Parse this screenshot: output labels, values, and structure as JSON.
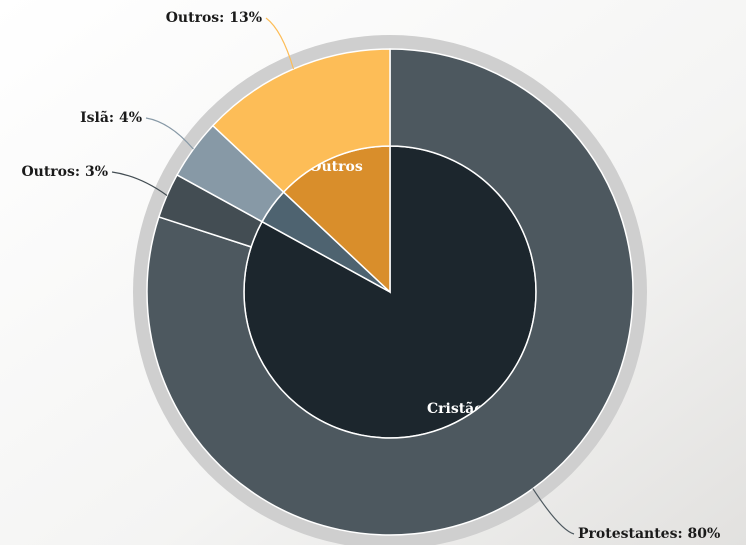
{
  "chart_data": {
    "type": "sunburst",
    "rings": [
      {
        "labels": [
          "Cristãos",
          null,
          "Outros"
        ],
        "values": [
          83,
          4,
          13
        ],
        "colors": [
          "#1c262d",
          "#4e6370",
          "#d98e2b"
        ]
      },
      {
        "labels": [
          "Protestantes: 80%",
          "Outros: 3%",
          "Islã: 4%",
          "Outros: 13%"
        ],
        "values": [
          80,
          3,
          4,
          13
        ],
        "colors": [
          "#4d585f",
          "#434d53",
          "#8799a6",
          "#fdbd57"
        ]
      }
    ]
  }
}
